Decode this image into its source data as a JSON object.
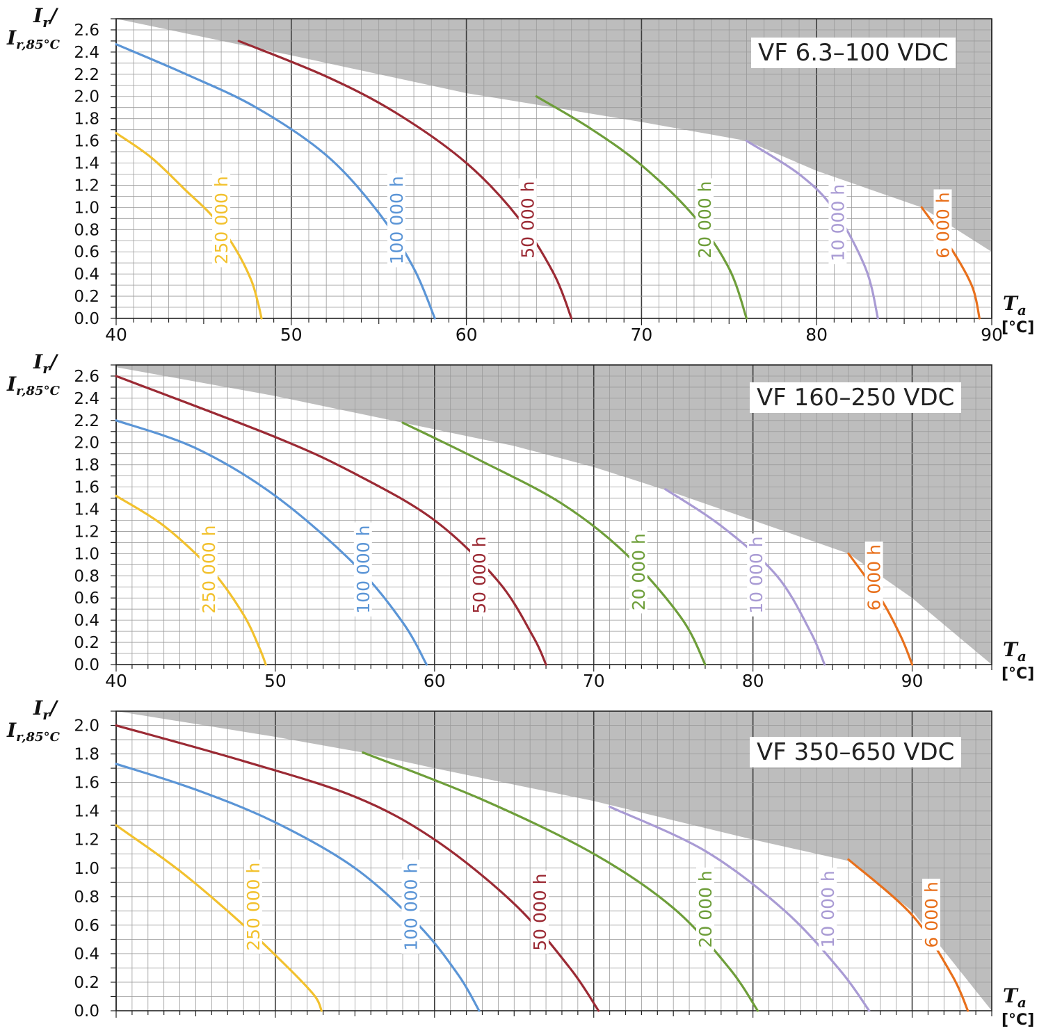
{
  "y_axis_label": {
    "num": "I",
    "num_sub": "r",
    "slash": "/",
    "den": "I",
    "den_sub": "r,85°C"
  },
  "x_axis_label": {
    "sym": "T",
    "sym_sub": "a",
    "unit": "[°C]"
  },
  "colors": {
    "shade": "#bdbdbd",
    "grid_minor": "#9a9a9a",
    "grid_major": "#3c3c3c",
    "s250000": "#f2c12e",
    "s100000": "#5b95d6",
    "s50000": "#9b2a34",
    "s20000": "#6e9e3a",
    "s10000": "#a99bd4",
    "s6000": "#e8701c"
  },
  "chart_data": [
    {
      "type": "line",
      "title": "VF 6.3–100 VDC",
      "xlim": [
        40,
        90
      ],
      "ylim": [
        0,
        2.7
      ],
      "x_ticks": [
        "40",
        "50",
        "60",
        "70",
        "80",
        "90"
      ],
      "y_ticks": [
        "0.0",
        "0.2",
        "0.4",
        "0.6",
        "0.8",
        "1.0",
        "1.2",
        "1.4",
        "1.6",
        "1.8",
        "2.0",
        "2.2",
        "2.4",
        "2.6"
      ],
      "grid": true,
      "permissible_limit": {
        "x": [
          40,
          50,
          60,
          70,
          76,
          80,
          86,
          90
        ],
        "y": [
          2.7,
          2.37,
          2.03,
          1.77,
          1.6,
          1.33,
          1.0,
          0.6
        ]
      },
      "series": [
        {
          "name": "250 000 h",
          "color_key": "s250000",
          "x": [
            40,
            42,
            44,
            45.5,
            46.8,
            47.7,
            48.1,
            48.3
          ],
          "y": [
            1.67,
            1.45,
            1.15,
            0.92,
            0.63,
            0.35,
            0.14,
            0.0
          ]
        },
        {
          "name": "100 000 h",
          "color_key": "s100000",
          "x": [
            40,
            44,
            48,
            52,
            55,
            57,
            58.2
          ],
          "y": [
            2.47,
            2.2,
            1.9,
            1.47,
            0.95,
            0.45,
            0.0
          ]
        },
        {
          "name": "50 000 h",
          "color_key": "s50000",
          "x": [
            47,
            52,
            56,
            60,
            63,
            65,
            66
          ],
          "y": [
            2.5,
            2.18,
            1.85,
            1.4,
            0.9,
            0.4,
            0.0
          ]
        },
        {
          "name": "20 000 h",
          "color_key": "s20000",
          "x": [
            64,
            67,
            70,
            73,
            75,
            76
          ],
          "y": [
            2.0,
            1.72,
            1.38,
            0.92,
            0.45,
            0.0
          ]
        },
        {
          "name": "10 000 h",
          "color_key": "s10000",
          "x": [
            76,
            79,
            81,
            82.8,
            83.5
          ],
          "y": [
            1.6,
            1.3,
            0.98,
            0.45,
            0.0
          ]
        },
        {
          "name": "6 000 h",
          "color_key": "s6000",
          "x": [
            86,
            87.8,
            88.9,
            89.3
          ],
          "y": [
            1.0,
            0.6,
            0.28,
            0.0
          ]
        }
      ]
    },
    {
      "type": "line",
      "title": "VF 160–250 VDC",
      "xlim": [
        40,
        95
      ],
      "ylim": [
        0,
        2.7
      ],
      "x_ticks": [
        "40",
        "50",
        "60",
        "70",
        "80",
        "90"
      ],
      "y_ticks": [
        "0.0",
        "0.2",
        "0.4",
        "0.6",
        "0.8",
        "1.0",
        "1.2",
        "1.4",
        "1.6",
        "1.8",
        "2.0",
        "2.2",
        "2.4",
        "2.6"
      ],
      "grid": true,
      "permissible_limit": {
        "x": [
          40,
          50,
          58,
          65,
          70,
          75,
          80,
          86,
          90,
          95
        ],
        "y": [
          2.68,
          2.42,
          2.18,
          1.97,
          1.78,
          1.55,
          1.3,
          1.0,
          0.6,
          0.0
        ]
      },
      "series": [
        {
          "name": "250 000 h",
          "color_key": "s250000",
          "x": [
            40,
            43,
            46,
            48,
            49,
            49.4
          ],
          "y": [
            1.52,
            1.25,
            0.85,
            0.45,
            0.15,
            0.0
          ]
        },
        {
          "name": "100 000 h",
          "color_key": "s100000",
          "x": [
            40,
            45,
            50,
            55,
            58,
            59.5
          ],
          "y": [
            2.2,
            1.95,
            1.52,
            0.9,
            0.38,
            0.0
          ]
        },
        {
          "name": "50 000 h",
          "color_key": "s50000",
          "x": [
            40,
            50,
            55,
            60,
            64,
            66.2,
            67
          ],
          "y": [
            2.6,
            2.05,
            1.72,
            1.3,
            0.75,
            0.25,
            0.0
          ]
        },
        {
          "name": "20 000 h",
          "color_key": "s20000",
          "x": [
            58,
            63,
            68,
            72,
            75.5,
            77
          ],
          "y": [
            2.18,
            1.83,
            1.45,
            1.0,
            0.42,
            0.0
          ]
        },
        {
          "name": "10 000 h",
          "color_key": "s10000",
          "x": [
            74.5,
            78,
            81.5,
            83.6,
            84.5
          ],
          "y": [
            1.58,
            1.25,
            0.8,
            0.3,
            0.0
          ]
        },
        {
          "name": "6 000 h",
          "color_key": "s6000",
          "x": [
            86,
            88,
            89.3,
            90
          ],
          "y": [
            1.0,
            0.6,
            0.25,
            0.0
          ]
        }
      ]
    },
    {
      "type": "line",
      "title": "VF 350–650 VDC",
      "xlim": [
        40,
        95
      ],
      "ylim": [
        0,
        2.1
      ],
      "x_ticks": [],
      "y_ticks": [
        "0.0",
        "0.2",
        "0.4",
        "0.6",
        "0.8",
        "1.0",
        "1.2",
        "1.4",
        "1.6",
        "1.8",
        "2.0"
      ],
      "grid": true,
      "permissible_limit": {
        "x": [
          40,
          50,
          55.5,
          60,
          70,
          80,
          86,
          90,
          95
        ],
        "y": [
          2.1,
          1.92,
          1.81,
          1.7,
          1.47,
          1.2,
          1.05,
          0.7,
          0.0
        ]
      },
      "series": [
        {
          "name": "250 000 h",
          "color_key": "s250000",
          "x": [
            40,
            44,
            48,
            51,
            52.5,
            52.9
          ],
          "y": [
            1.3,
            0.98,
            0.6,
            0.28,
            0.1,
            0.0
          ]
        },
        {
          "name": "100 000 h",
          "color_key": "s100000",
          "x": [
            40,
            45,
            50,
            55,
            59,
            61.5,
            62.8
          ],
          "y": [
            1.73,
            1.55,
            1.32,
            1.0,
            0.6,
            0.25,
            0.0
          ]
        },
        {
          "name": "50 000 h",
          "color_key": "s50000",
          "x": [
            40,
            48,
            55,
            60,
            65,
            68.5,
            70.3
          ],
          "y": [
            2.0,
            1.75,
            1.5,
            1.2,
            0.75,
            0.3,
            0.0
          ]
        },
        {
          "name": "20 000 h",
          "color_key": "s20000",
          "x": [
            55.5,
            63,
            70,
            75,
            78.5,
            80.3
          ],
          "y": [
            1.81,
            1.48,
            1.1,
            0.72,
            0.3,
            0.0
          ]
        },
        {
          "name": "10 000 h",
          "color_key": "s10000",
          "x": [
            71,
            77,
            82,
            85.5,
            87.3
          ],
          "y": [
            1.43,
            1.12,
            0.7,
            0.28,
            0.0
          ]
        },
        {
          "name": "6 000 h",
          "color_key": "s6000",
          "x": [
            86,
            90,
            92.5,
            93.5
          ],
          "y": [
            1.06,
            0.67,
            0.25,
            0.0
          ]
        }
      ]
    }
  ]
}
